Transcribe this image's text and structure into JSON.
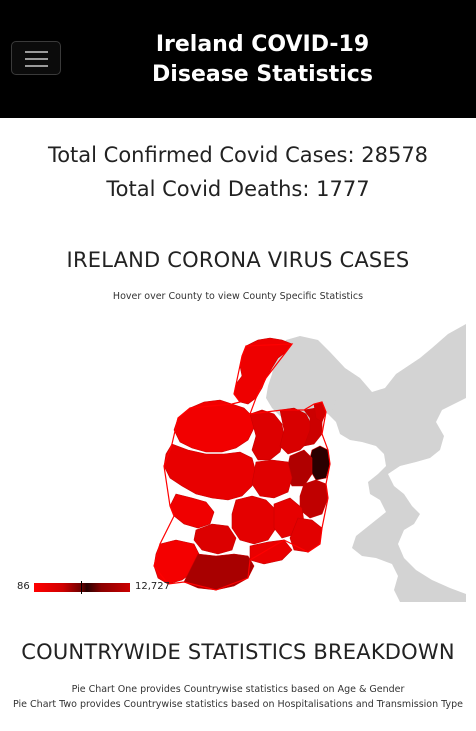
{
  "navbar": {
    "menu_icon": "hamburger-icon",
    "brand_line1": "Ireland COVID-19",
    "brand_line2": "Disease Statistics"
  },
  "stats": {
    "confirmed": "Total Confirmed Covid Cases: 28578",
    "deaths": "Total Covid Deaths: 1777"
  },
  "map_section": {
    "heading": "IRELAND CORONA VIRUS CASES",
    "hint": "Hover over County to view County Specific Statistics",
    "legend_min": "86",
    "legend_max": "12,727",
    "colors": {
      "low": "#ff0000",
      "high": "#2a0000",
      "land_other": "#d3d3d3"
    }
  },
  "breakdown": {
    "heading": "COUNTRYWIDE STATISTICS BREAKDOWN",
    "line1": "Pie Chart One provides Countrywise statistics based on Age & Gender",
    "line2": "Pie Chart Two provides Countrywise statistics based on Hospitalisations and Transmission Type"
  }
}
